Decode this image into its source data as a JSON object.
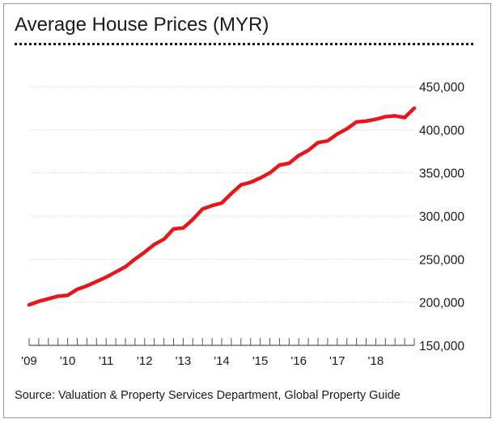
{
  "chart_data": {
    "type": "line",
    "title": "Average House Prices (MYR)",
    "source": "Source: Valuation & Property Services Department, Global Property Guide",
    "colors": {
      "line": "#e8161b",
      "grid": "#cfcfcf",
      "axis": "#555555"
    },
    "grid": true,
    "y_axis_side": "right",
    "ylim": [
      150000,
      450000
    ],
    "yticks": [
      150000,
      200000,
      250000,
      300000,
      350000,
      400000,
      450000
    ],
    "ytick_labels": [
      "150,000",
      "200,000",
      "250,000",
      "300,000",
      "350,000",
      "400,000",
      "450,000"
    ],
    "xlim": [
      2009.0,
      2019.0
    ],
    "xticks": [
      2009,
      2010,
      2011,
      2012,
      2013,
      2014,
      2015,
      2016,
      2017,
      2018
    ],
    "xtick_labels": [
      "'09",
      "'10",
      "'11",
      "'12",
      "'13",
      "'14",
      "'15",
      "'16",
      "'17",
      "'18"
    ],
    "series": [
      {
        "x": [
          2009.0,
          2009.25,
          2009.5,
          2009.75,
          2010.0,
          2010.25,
          2010.5,
          2010.75,
          2011.0,
          2011.25,
          2011.5,
          2011.75,
          2012.0,
          2012.25,
          2012.5,
          2012.75,
          2013.0,
          2013.25,
          2013.5,
          2013.75,
          2014.0,
          2014.25,
          2014.5,
          2014.75,
          2015.0,
          2015.25,
          2015.5,
          2015.75,
          2016.0,
          2016.25,
          2016.5,
          2016.75,
          2017.0,
          2017.25,
          2017.5,
          2017.75,
          2018.0,
          2018.25,
          2018.5,
          2018.75,
          2019.0
        ],
        "y": [
          197000,
          201000,
          204000,
          207000,
          208000,
          215000,
          219000,
          224000,
          229000,
          235000,
          241000,
          250000,
          258000,
          267000,
          273000,
          285000,
          286000,
          296000,
          308000,
          312000,
          315000,
          326000,
          336000,
          339000,
          344000,
          350000,
          359000,
          361000,
          370000,
          376000,
          385000,
          387000,
          395000,
          401000,
          409000,
          410000,
          412000,
          415000,
          416000,
          414000,
          425000
        ]
      }
    ]
  }
}
